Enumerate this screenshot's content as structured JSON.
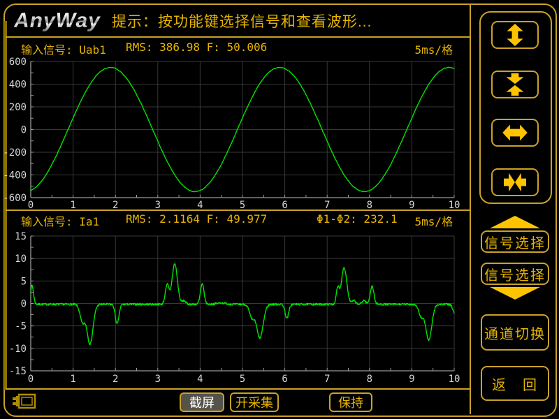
{
  "title_bar": {
    "logo": "AnyWay",
    "hint": "提示：按功能键选择信号和查看波形..."
  },
  "top_chart": {
    "header": {
      "signal": "输入信号: Uab1",
      "measurements": "RMS: 386.98 F: 50.006",
      "timebase": "5ms/格"
    }
  },
  "bottom_chart": {
    "header": {
      "signal": "输入信号: Ia1",
      "measurements": "RMS: 2.1164 F: 49.977",
      "phase": "Φ1-Φ2: 232.1",
      "timebase": "5ms/格"
    }
  },
  "sidebar": {
    "zoom_buttons": [
      {
        "icon": "expand-vertical-icon"
      },
      {
        "icon": "compress-vertical-icon"
      },
      {
        "icon": "expand-horizontal-icon"
      },
      {
        "icon": "compress-horizontal-icon"
      }
    ],
    "signal_select_up": "信号选择",
    "signal_select_down": "信号选择",
    "channel_switch": "通道切换",
    "back_left": "返",
    "back_right": "回"
  },
  "bottom_bar": {
    "screenshot": "截屏",
    "start_capture": "开采集",
    "hold": "保持",
    "battery_icon": "battery-icon"
  },
  "colors": {
    "accent": "#C9A227",
    "text_yellow": "#E6B400",
    "icon_yellow": "#FFC400",
    "trace_green": "#00E400",
    "grid": "#383838",
    "axis": "#9A9A9A",
    "tick_text": "#D6D6D6",
    "screenshot_btn_bg": "#55524A"
  },
  "chart_data": [
    {
      "type": "line",
      "name": "Uab1",
      "signal_kind": "voltage",
      "rms": 386.98,
      "frequency_hz": 50.006,
      "timebase_per_div": "5ms",
      "x_axis": {
        "ticks": [
          "0",
          "1",
          "2",
          "3",
          "4",
          "5",
          "6",
          "7",
          "8",
          "9",
          "10"
        ],
        "min": 0,
        "max": 10
      },
      "y_axis": {
        "ticks": [
          "600",
          "400",
          "200",
          "0",
          "-200",
          "-400",
          "-600"
        ],
        "min": -600,
        "max": 600
      },
      "grid": true,
      "trace_color": "#00E400",
      "waveform": {
        "kind": "sine",
        "amplitude": 547,
        "period_div": 4,
        "phase_div": 0.88,
        "noise": 2.5,
        "seed": 11
      }
    },
    {
      "type": "line",
      "name": "Ia1",
      "signal_kind": "current",
      "rms": 2.1164,
      "frequency_hz": 49.977,
      "phase_diff_deg": 232.1,
      "timebase_per_div": "5ms",
      "x_axis": {
        "ticks": [
          "0",
          "1",
          "2",
          "3",
          "4",
          "5",
          "6",
          "7",
          "8",
          "9",
          "10"
        ],
        "min": 0,
        "max": 10
      },
      "y_axis": {
        "ticks": [
          "15",
          "10",
          "5",
          "0",
          "-5",
          "-10",
          "-15"
        ],
        "min": -15,
        "max": 15
      },
      "grid": true,
      "trace_color": "#00E400",
      "waveform": {
        "kind": "baseline_pulses",
        "baseline": -0.2,
        "noise": 0.22,
        "seed": 7,
        "pulses": [
          {
            "x": 0.03,
            "w": 0.05,
            "a": 4.2
          },
          {
            "x": 1.22,
            "w": 0.08,
            "a": -3.9
          },
          {
            "x": 1.4,
            "w": 0.1,
            "a": -8.8
          },
          {
            "x": 2.04,
            "w": 0.06,
            "a": -4.4
          },
          {
            "x": 3.22,
            "w": 0.06,
            "a": 4.4
          },
          {
            "x": 3.4,
            "w": 0.09,
            "a": 9.0
          },
          {
            "x": 3.62,
            "w": 0.06,
            "a": 0.8
          },
          {
            "x": 4.05,
            "w": 0.06,
            "a": 4.5
          },
          {
            "x": 4.5,
            "w": 0.15,
            "a": 0.3
          },
          {
            "x": 5.22,
            "w": 0.08,
            "a": -2.9
          },
          {
            "x": 5.41,
            "w": 0.11,
            "a": -7.5
          },
          {
            "x": 6.05,
            "w": 0.06,
            "a": -3.1
          },
          {
            "x": 7.25,
            "w": 0.05,
            "a": 3.4
          },
          {
            "x": 7.4,
            "w": 0.09,
            "a": 8.2
          },
          {
            "x": 7.63,
            "w": 0.06,
            "a": 0.8
          },
          {
            "x": 7.87,
            "w": 0.06,
            "a": 0.9
          },
          {
            "x": 8.06,
            "w": 0.06,
            "a": 4.1
          },
          {
            "x": 9.22,
            "w": 0.08,
            "a": -2.7
          },
          {
            "x": 9.4,
            "w": 0.1,
            "a": -7.9
          },
          {
            "x": 10.04,
            "w": 0.08,
            "a": -2.6
          }
        ]
      }
    }
  ]
}
